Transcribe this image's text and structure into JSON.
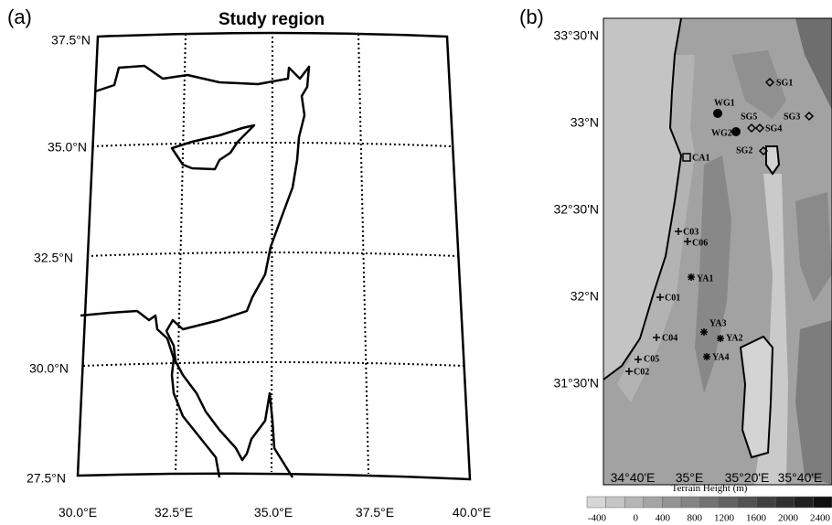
{
  "panel_a": {
    "label": "(a)",
    "title": "Study region",
    "lat_labels": [
      "37.5°N",
      "35.0°N",
      "32.5°N",
      "30.0°N",
      "27.5°N"
    ],
    "lon_labels": [
      "30.0°E",
      "32.5°E",
      "35.0°E",
      "37.5°E",
      "40.0°E"
    ]
  },
  "panel_b": {
    "label": "(b)",
    "lat_labels": [
      "33°30'N",
      "33°N",
      "32°30'N",
      "32°N",
      "31°30'N"
    ],
    "lon_labels": [
      "34°40'E",
      "35°E",
      "35°20'E",
      "35°40'E"
    ],
    "stations": [
      {
        "label": "SG1"
      },
      {
        "label": "WG1"
      },
      {
        "label": "SG5"
      },
      {
        "label": "SG3"
      },
      {
        "label": "WG2"
      },
      {
        "label": "SG4"
      },
      {
        "label": "SG2"
      },
      {
        "label": "CA1"
      },
      {
        "label": "C03"
      },
      {
        "label": "C06"
      },
      {
        "label": "YA1"
      },
      {
        "label": "C01"
      },
      {
        "label": "YA3"
      },
      {
        "label": "C04"
      },
      {
        "label": "YA2"
      },
      {
        "label": "C05"
      },
      {
        "label": "YA4"
      },
      {
        "label": "C02"
      }
    ],
    "colorbar": {
      "title": "Terrain Height (m)",
      "labels": [
        -400,
        0,
        400,
        800,
        1200,
        1600,
        2000,
        2400
      ]
    }
  }
}
